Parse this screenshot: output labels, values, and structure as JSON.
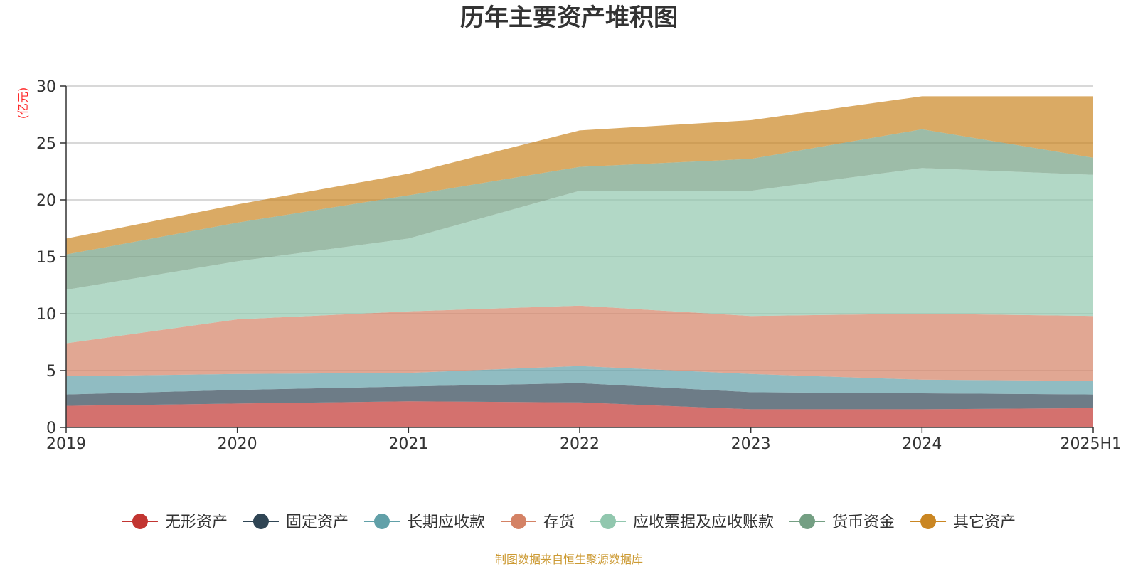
{
  "chart_data": {
    "type": "area",
    "stacked": true,
    "title": "历年主要资产堆积图",
    "unit_label": "(亿元)",
    "source_note": "制图数据来自恒生聚源数据库",
    "x": [
      "2019",
      "2020",
      "2021",
      "2022",
      "2023",
      "2024",
      "2025H1"
    ],
    "ylim": [
      0,
      30
    ],
    "yticks": [
      0,
      5,
      10,
      15,
      20,
      25,
      30
    ],
    "grid": true,
    "legend_position": "bottom",
    "series": [
      {
        "name": "无形资产",
        "color": "#c23531",
        "values": [
          1.9,
          2.1,
          2.3,
          2.2,
          1.6,
          1.6,
          1.7
        ]
      },
      {
        "name": "固定资产",
        "color": "#2f4554",
        "values": [
          1.0,
          1.2,
          1.3,
          1.7,
          1.5,
          1.4,
          1.2
        ]
      },
      {
        "name": "长期应收款",
        "color": "#61a0a8",
        "values": [
          1.6,
          1.4,
          1.2,
          1.5,
          1.6,
          1.2,
          1.2
        ]
      },
      {
        "name": "存货",
        "color": "#d48265",
        "values": [
          2.9,
          4.8,
          5.4,
          5.3,
          5.1,
          5.8,
          5.7
        ]
      },
      {
        "name": "应收票据及应收账款",
        "color": "#91c7ae",
        "values": [
          4.7,
          5.1,
          6.4,
          10.1,
          11.0,
          12.8,
          12.4
        ]
      },
      {
        "name": "货币资金",
        "color": "#749f83",
        "values": [
          3.1,
          3.4,
          3.8,
          2.1,
          2.8,
          3.4,
          1.5
        ]
      },
      {
        "name": "其它资产",
        "color": "#ca8622",
        "values": [
          1.4,
          1.6,
          1.9,
          3.2,
          3.4,
          2.9,
          5.4
        ]
      }
    ]
  }
}
